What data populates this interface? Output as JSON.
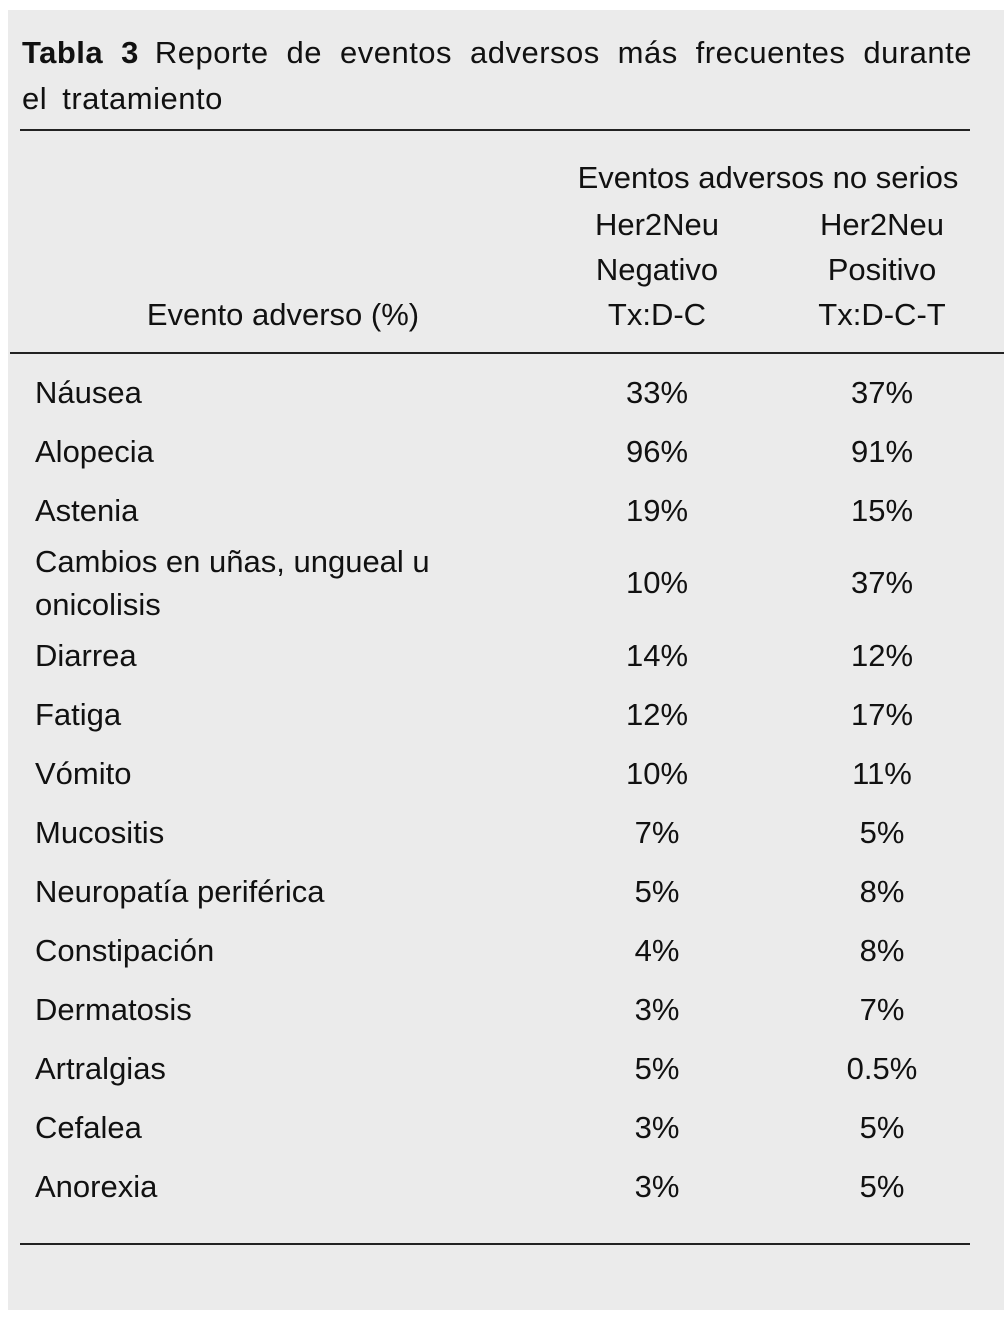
{
  "caption": {
    "label": "Tabla 3",
    "title": "Reporte de eventos adversos más frecuentes durante el tratamiento"
  },
  "table": {
    "group_header": "Eventos adversos no serios",
    "columns": [
      [
        "Evento adverso (%)"
      ],
      [
        "Her2Neu",
        "Negativo",
        "Tx:D-C"
      ],
      [
        "Her2Neu",
        "Positivo",
        "Tx:D-C-T"
      ]
    ],
    "rows": [
      [
        "Náusea",
        "33%",
        "37%"
      ],
      [
        "Alopecia",
        "96%",
        "91%"
      ],
      [
        "Astenia",
        "19%",
        "15%"
      ],
      [
        "Cambios en uñas, ungueal u onicolisis",
        "10%",
        "37%"
      ],
      [
        "Diarrea",
        "14%",
        "12%"
      ],
      [
        "Fatiga",
        "12%",
        "17%"
      ],
      [
        "Vómito",
        "10%",
        "11%"
      ],
      [
        "Mucositis",
        "7%",
        "5%"
      ],
      [
        "Neuropatía periférica",
        "5%",
        "8%"
      ],
      [
        "Constipación",
        "4%",
        "8%"
      ],
      [
        "Dermatosis",
        "3%",
        "7%"
      ],
      [
        "Artralgias",
        "5%",
        "0.5%"
      ],
      [
        "Cefalea",
        "3%",
        "5%"
      ],
      [
        "Anorexia",
        "3%",
        "5%"
      ]
    ]
  }
}
